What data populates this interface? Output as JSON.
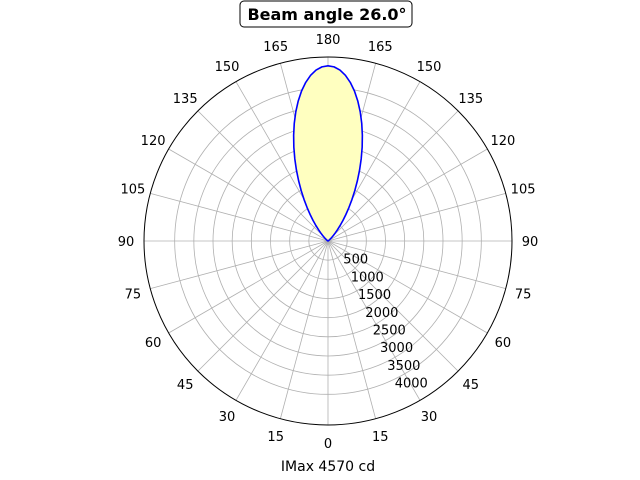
{
  "chart_data": {
    "type": "polar",
    "title": "Beam angle 26.0°",
    "xlabel": "IMax 4570 cd",
    "ylabel": "",
    "angle_labels": [
      "180",
      "165",
      "150",
      "135",
      "120",
      "105",
      "90",
      "75",
      "60",
      "45",
      "30",
      "15",
      "0",
      "15",
      "30",
      "45",
      "60",
      "75",
      "90",
      "105",
      "120",
      "135",
      "150",
      "165"
    ],
    "radial_ticks": [
      500,
      1000,
      1500,
      2000,
      2500,
      3000,
      3500,
      4000
    ],
    "rmax": 4800,
    "imax": 4570,
    "beam_angle_deg": 26.0,
    "series": [
      {
        "line_color": "#0000ff",
        "fill_color": "#ffffc0",
        "points": [
          [
            0,
            4570
          ],
          [
            2,
            4545
          ],
          [
            4,
            4469
          ],
          [
            6,
            4345
          ],
          [
            8,
            4178
          ],
          [
            10,
            3973
          ],
          [
            12,
            3735
          ],
          [
            14,
            3473
          ],
          [
            16,
            3193
          ],
          [
            18,
            2901
          ],
          [
            20,
            2606
          ],
          [
            22,
            2312
          ],
          [
            24,
            2025
          ],
          [
            26,
            1749
          ],
          [
            28,
            1490
          ],
          [
            30,
            1249
          ],
          [
            32,
            1030
          ],
          [
            34,
            834
          ],
          [
            36,
            662
          ],
          [
            38,
            514
          ],
          [
            40,
            389
          ],
          [
            42,
            287
          ],
          [
            44,
            205
          ],
          [
            46,
            141
          ],
          [
            48,
            93
          ],
          [
            50,
            59
          ],
          [
            55,
            17
          ],
          [
            60,
            4
          ],
          [
            70,
            0
          ],
          [
            90,
            0
          ]
        ]
      }
    ]
  }
}
